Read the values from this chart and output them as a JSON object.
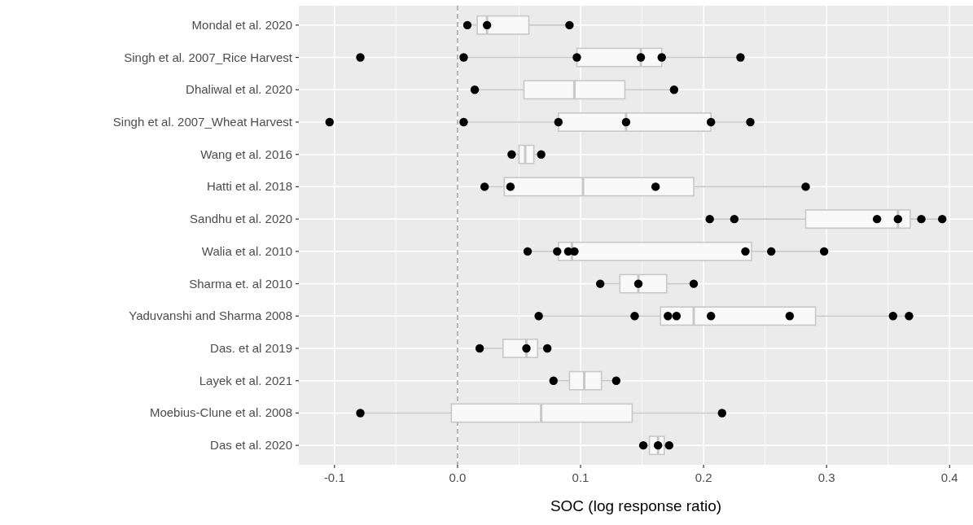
{
  "chart_data": {
    "type": "box",
    "orientation": "horizontal",
    "xlabel": "SOC (log response ratio)",
    "categories": [
      "Mondal et al. 2020",
      "Singh et al. 2007_Rice Harvest",
      "Dhaliwal et al. 2020",
      "Singh et al. 2007_Wheat Harvest",
      "Wang et al. 2016",
      "Hatti et al. 2018",
      "Sandhu et al. 2020",
      "Walia et al. 2010",
      "Sharma et. al 2010",
      "Yaduvanshi and Sharma 2008",
      "Das. et al 2019",
      "Layek et al. 2021",
      "Moebius-Clune et al. 2008",
      "Das et al. 2020"
    ],
    "color": "#f9f9f9",
    "boxes": [
      {
        "low": 0.008,
        "q1": 0.016,
        "median": 0.024,
        "q3": 0.058,
        "high": 0.091
      },
      {
        "low": 0.005,
        "q1": 0.097,
        "median": 0.149,
        "q3": 0.166,
        "high": 0.23
      },
      {
        "low": 0.014,
        "q1": 0.054,
        "median": 0.095,
        "q3": 0.136,
        "high": 0.176
      },
      {
        "low": 0.005,
        "q1": 0.082,
        "median": 0.137,
        "q3": 0.206,
        "high": 0.238
      },
      {
        "low": 0.044,
        "q1": 0.05,
        "median": 0.055,
        "q3": 0.062,
        "high": 0.068
      },
      {
        "low": 0.022,
        "q1": 0.038,
        "median": 0.102,
        "q3": 0.192,
        "high": 0.283
      },
      {
        "low": 0.205,
        "q1": 0.283,
        "median": 0.358,
        "q3": 0.368,
        "high": 0.394
      },
      {
        "low": 0.057,
        "q1": 0.082,
        "median": 0.093,
        "q3": 0.239,
        "high": 0.298
      },
      {
        "low": 0.116,
        "q1": 0.132,
        "median": 0.147,
        "q3": 0.17,
        "high": 0.192
      },
      {
        "low": 0.066,
        "q1": 0.165,
        "median": 0.192,
        "q3": 0.291,
        "high": 0.367
      },
      {
        "low": 0.018,
        "q1": 0.037,
        "median": 0.056,
        "q3": 0.065,
        "high": 0.073
      },
      {
        "low": 0.078,
        "q1": 0.091,
        "median": 0.103,
        "q3": 0.117,
        "high": 0.129
      },
      {
        "low": -0.079,
        "q1": -0.005,
        "median": 0.068,
        "q3": 0.142,
        "high": 0.215
      },
      {
        "low": 0.151,
        "q1": 0.156,
        "median": 0.163,
        "q3": 0.168,
        "high": 0.172
      }
    ],
    "series": [
      {
        "type": "scatter",
        "color": "#000000",
        "x": [
          "Mondal et al. 2020",
          "Mondal et al. 2020",
          "Mondal et al. 2020",
          "Singh et al. 2007_Rice Harvest",
          "Singh et al. 2007_Rice Harvest",
          "Singh et al. 2007_Rice Harvest",
          "Singh et al. 2007_Rice Harvest",
          "Singh et al. 2007_Rice Harvest",
          "Singh et al. 2007_Rice Harvest",
          "Dhaliwal et al. 2020",
          "Dhaliwal et al. 2020",
          "Singh et al. 2007_Wheat Harvest",
          "Singh et al. 2007_Wheat Harvest",
          "Singh et al. 2007_Wheat Harvest",
          "Singh et al. 2007_Wheat Harvest",
          "Singh et al. 2007_Wheat Harvest",
          "Singh et al. 2007_Wheat Harvest",
          "Wang et al. 2016",
          "Wang et al. 2016",
          "Hatti et al. 2018",
          "Hatti et al. 2018",
          "Hatti et al. 2018",
          "Hatti et al. 2018",
          "Sandhu et al. 2020",
          "Sandhu et al. 2020",
          "Sandhu et al. 2020",
          "Sandhu et al. 2020",
          "Sandhu et al. 2020",
          "Sandhu et al. 2020",
          "Walia et al. 2010",
          "Walia et al. 2010",
          "Walia et al. 2010",
          "Walia et al. 2010",
          "Walia et al. 2010",
          "Walia et al. 2010",
          "Walia et al. 2010",
          "Sharma et. al 2010",
          "Sharma et. al 2010",
          "Sharma et. al 2010",
          "Yaduvanshi and Sharma 2008",
          "Yaduvanshi and Sharma 2008",
          "Yaduvanshi and Sharma 2008",
          "Yaduvanshi and Sharma 2008",
          "Yaduvanshi and Sharma 2008",
          "Yaduvanshi and Sharma 2008",
          "Yaduvanshi and Sharma 2008",
          "Yaduvanshi and Sharma 2008",
          "Das. et al 2019",
          "Das. et al 2019",
          "Das. et al 2019",
          "Layek et al. 2021",
          "Layek et al. 2021",
          "Moebius-Clune et al. 2008",
          "Moebius-Clune et al. 2008",
          "Das et al. 2020",
          "Das et al. 2020",
          "Das et al. 2020"
        ],
        "values": [
          0.008,
          0.024,
          0.091,
          -0.079,
          0.005,
          0.097,
          0.149,
          0.166,
          0.23,
          0.014,
          0.176,
          -0.104,
          0.005,
          0.082,
          0.137,
          0.206,
          0.238,
          0.044,
          0.068,
          0.022,
          0.043,
          0.161,
          0.283,
          0.205,
          0.225,
          0.341,
          0.358,
          0.377,
          0.394,
          0.057,
          0.081,
          0.09,
          0.095,
          0.234,
          0.255,
          0.298,
          0.116,
          0.147,
          0.192,
          0.066,
          0.144,
          0.171,
          0.178,
          0.206,
          0.27,
          0.354,
          0.367,
          0.018,
          0.056,
          0.073,
          0.078,
          0.129,
          -0.079,
          0.215,
          0.151,
          0.163,
          0.172
        ]
      }
    ],
    "ref_lines": [
      {
        "axis": "x",
        "value": 0,
        "color": "#a6a6a6",
        "line_style": "dashed"
      }
    ],
    "xlim": [
      -0.129,
      0.419
    ],
    "xticks": [
      -0.1,
      {
        "value": 0,
        "label": "0.0"
      },
      0.1,
      0.2,
      0.3,
      0.4
    ],
    "grid": true
  }
}
